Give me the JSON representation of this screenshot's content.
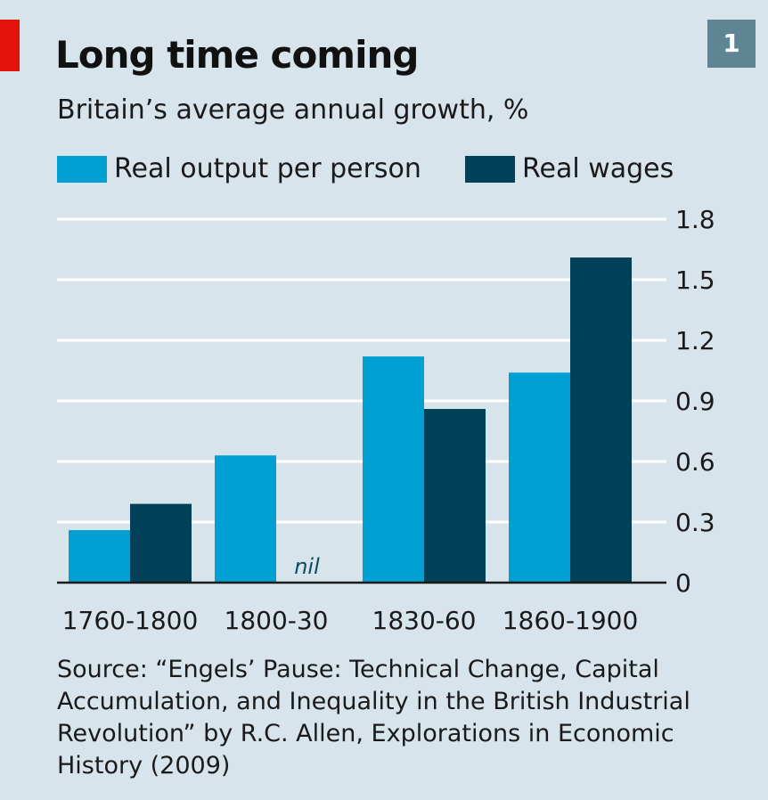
{
  "badge": "1",
  "source": "Source: “Engels’ Pause: Technical Change, Capital Accumulation, and Inequality in the British Industrial Revolution” by R.C. Allen, Explorations in Economic History (2009)",
  "colors": {
    "background": "#d8e4ec",
    "accent": "#e3120b",
    "badge": "#5f8594",
    "series1": "#00a1d2",
    "series2": "#004158"
  },
  "chart_data": {
    "type": "bar",
    "title": "Long time coming",
    "subtitle": "Britain’s average annual growth, %",
    "xlabel": "",
    "ylabel": "",
    "categories": [
      "1760-1800",
      "1800-30",
      "1830-60",
      "1860-1900"
    ],
    "series": [
      {
        "name": "Real output per person",
        "values": [
          0.26,
          0.63,
          1.12,
          1.04
        ]
      },
      {
        "name": "Real wages",
        "values": [
          0.39,
          0,
          0.86,
          1.61
        ]
      }
    ],
    "annotations": [
      {
        "category": "1800-30",
        "series": "Real wages",
        "text": "nil"
      }
    ],
    "yticks": [
      "0",
      "0.3",
      "0.6",
      "0.9",
      "1.2",
      "1.5",
      "1.8"
    ],
    "ylim": [
      0,
      1.8
    ],
    "grid": true,
    "y_axis_side": "right",
    "legend_position": "top"
  }
}
